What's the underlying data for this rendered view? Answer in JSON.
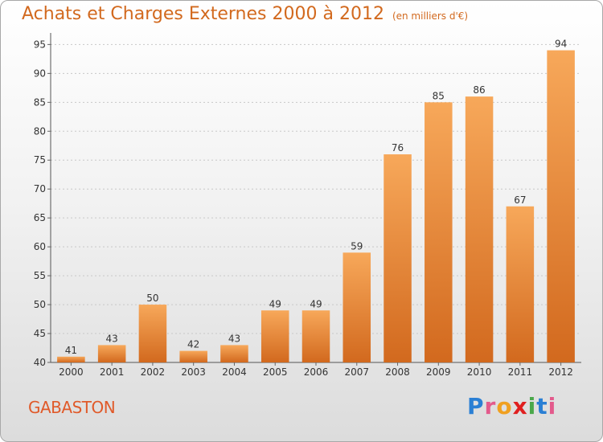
{
  "header": {
    "title": "Achats et Charges Externes 2000 à 2012",
    "subtitle": "(en milliers d'€)"
  },
  "footer": {
    "location": "GABASTON",
    "logo_letters": [
      "P",
      "r",
      "o",
      "x",
      "i",
      "t",
      "i"
    ]
  },
  "colors": {
    "title": "#d2691e",
    "location": "#e05a2a",
    "bar_top": "#f7a85a",
    "bar_bottom": "#d2691e",
    "grid": "#c8c8c8",
    "logo": [
      "#2a7fd4",
      "#e35a8c",
      "#f0a020",
      "#e02020",
      "#4aa84a",
      "#2a7fd4",
      "#e35a8c"
    ]
  },
  "chart_data": {
    "type": "bar",
    "title": "Achats et Charges Externes 2000 à 2012",
    "categories": [
      "2000",
      "2001",
      "2002",
      "2003",
      "2004",
      "2005",
      "2006",
      "2007",
      "2008",
      "2009",
      "2010",
      "2011",
      "2012"
    ],
    "values": [
      41,
      43,
      50,
      42,
      43,
      49,
      49,
      59,
      76,
      85,
      86,
      67,
      94
    ],
    "yticks": [
      40,
      45,
      50,
      55,
      60,
      65,
      70,
      75,
      80,
      85,
      90,
      95
    ],
    "ylim": [
      40,
      97
    ],
    "grid": true,
    "xlabel": "",
    "ylabel": ""
  }
}
